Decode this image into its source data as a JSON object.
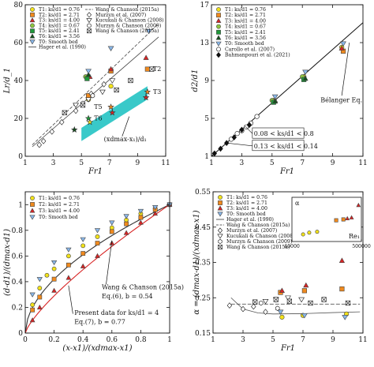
{
  "colors": {
    "t1": "#f2e21a",
    "t2": "#f08a1e",
    "t3": "#d82424",
    "t4": "#8ec63f",
    "t5": "#1f9a3a",
    "t6": "#154f1d",
    "t0": "#8ab8ea",
    "band": "#2ec6c6",
    "axis": "#111111",
    "ref": "#333333"
  },
  "chart_data": [
    {
      "id": "A",
      "type": "scatter",
      "ylabel": "L_r/d_1",
      "xlabel": "Fr_1",
      "xlim": [
        1,
        11
      ],
      "ylim": [
        0,
        80
      ],
      "xticks": [
        1,
        3,
        5,
        7,
        9,
        11
      ],
      "yticks": [
        0,
        20,
        40,
        60,
        80
      ],
      "grid": false,
      "legend_position": "top-left",
      "annotations": [
        "T2",
        "T3",
        "T5",
        "T6",
        "(x_dmax-x_1)/d_1"
      ],
      "band": {
        "x": [
          5,
          9.7
        ],
        "lower": [
          8,
          30
        ],
        "upper": [
          15,
          37
        ]
      },
      "lines": [
        {
          "name": "Hager et al. (1990)",
          "style": "solid",
          "x": [
            1.5,
            10.5
          ],
          "y": [
            5,
            63
          ]
        },
        {
          "name": "Wang & Chanson (2015a)",
          "style": "dashed",
          "x": [
            1.5,
            10.5
          ],
          "y": [
            6,
            70
          ]
        }
      ],
      "series": [
        {
          "name": "T1: k_s/d_1 = 0.76",
          "marker": "circle",
          "color": "t1",
          "x": [
            5.5,
            7.1
          ],
          "y": [
            30,
            37
          ]
        },
        {
          "name": "T2: k_s/d_1 = 2.71",
          "marker": "square",
          "color": "t2",
          "x": [
            5.5,
            7.1,
            9.7
          ],
          "y": [
            32,
            45,
            46
          ]
        },
        {
          "name": "T3: k_s/d_1 = 4.00",
          "marker": "triangle",
          "color": "t3",
          "x": [
            5.6,
            7.1,
            9.6
          ],
          "y": [
            42,
            46,
            52
          ]
        },
        {
          "name": "T4: k_s/d_1 = 0.67",
          "marker": "circle",
          "color": "t4",
          "x": [
            5.3
          ],
          "y": [
            42
          ]
        },
        {
          "name": "T5: k_s/d_1 = 2.41",
          "marker": "square",
          "color": "t5",
          "x": [
            5.4
          ],
          "y": [
            41
          ]
        },
        {
          "name": "T6: k_s/d_1 = 3.56",
          "marker": "triangle",
          "color": "t6",
          "x": [
            5.5
          ],
          "y": [
            43
          ]
        },
        {
          "name": "T0: Smooth bed",
          "marker": "triangle-down",
          "color": "t0",
          "x": [
            5.5,
            7.1,
            9.8
          ],
          "y": [
            45,
            57,
            66
          ]
        },
        {
          "name": "Present T2 star",
          "marker": "star",
          "color": "t2",
          "x": [
            7.1,
            9.7
          ],
          "y": [
            26,
            34
          ]
        },
        {
          "name": "Present T3 star",
          "marker": "star",
          "color": "t3",
          "x": [
            7.2,
            9.6
          ],
          "y": [
            23,
            31
          ]
        },
        {
          "name": "Present T5 star",
          "marker": "star",
          "color": "t5",
          "x": [
            5.5
          ],
          "y": [
            20
          ]
        },
        {
          "name": "Present T6 star",
          "marker": "star",
          "color": "t6",
          "x": [
            4.5
          ],
          "y": [
            14
          ]
        },
        {
          "name": "Present T1 star",
          "marker": "star",
          "color": "t1",
          "x": [
            5.6
          ],
          "y": [
            18
          ]
        },
        {
          "name": "Murzyn et al. (2007)",
          "marker": "diamond",
          "color": "open",
          "x": [
            2.0,
            2.3,
            2.9,
            3.6,
            4.6,
            5.7,
            6.6
          ],
          "y": [
            6,
            8,
            13,
            18,
            24,
            33,
            38
          ]
        },
        {
          "name": "Kucukali & Chanson (2008)",
          "marker": "triangle-down-open",
          "color": "open",
          "x": [
            4.6,
            5.5,
            6.5,
            7.2
          ],
          "y": [
            27,
            30,
            34,
            40
          ]
        },
        {
          "name": "Murzyn & Chanson (2009)",
          "marker": "hexagon",
          "color": "open",
          "x": [
            5.1,
            5.8
          ],
          "y": [
            28,
            32
          ]
        },
        {
          "name": "Wang & Chanson (2015a)",
          "marker": "xbox",
          "color": "open",
          "x": [
            3.8,
            5.1,
            7.5,
            8.5,
            10.0
          ],
          "y": [
            23,
            27,
            35,
            40,
            46
          ]
        }
      ]
    },
    {
      "id": "B",
      "type": "scatter",
      "ylabel": "d_2/d_1",
      "xlabel": "Fr_1",
      "xlim": [
        1,
        11
      ],
      "ylim": [
        1,
        17
      ],
      "xticks": [
        1,
        3,
        5,
        7,
        9,
        11
      ],
      "yticks": [
        1,
        5,
        9,
        13,
        17
      ],
      "grid": false,
      "legend_position": "top-left",
      "annotations": [
        "Bélanger Eq.",
        "0.08 < k_s/d_1 < 0.8",
        "0.13 < k_s/d_1 < 0.14"
      ],
      "lines": [
        {
          "name": "Bélanger Eq.",
          "style": "solid",
          "x": [
            1,
            11
          ],
          "y": [
            1,
            15.1
          ]
        }
      ],
      "series": [
        {
          "name": "T1: k_s/d_1 = 0.76",
          "marker": "circle",
          "color": "t1",
          "x": [
            5.1,
            7.1,
            9.6
          ],
          "y": [
            6.9,
            9.4,
            12.5
          ]
        },
        {
          "name": "T2: k_s/d_1 = 2.71",
          "marker": "square",
          "color": "t2",
          "x": [
            5.1,
            7.1,
            9.7
          ],
          "y": [
            6.8,
            9.2,
            12.1
          ]
        },
        {
          "name": "T3: k_s/d_1 = 4.00",
          "marker": "triangle",
          "color": "t3",
          "x": [
            5.2,
            7.1,
            9.6
          ],
          "y": [
            6.9,
            9.3,
            12.4
          ]
        },
        {
          "name": "T4: k_s/d_1 = 0.67",
          "marker": "circle",
          "color": "t4",
          "x": [
            5.0,
            7.0
          ],
          "y": [
            6.9,
            9.4
          ]
        },
        {
          "name": "T5: k_s/d_1 = 2.41",
          "marker": "square",
          "color": "t5",
          "x": [
            5.1,
            7.1
          ],
          "y": [
            6.7,
            9.1
          ]
        },
        {
          "name": "T6: k_s/d_1 = 3.56",
          "marker": "triangle",
          "color": "t6",
          "x": [
            5.2,
            7.2
          ],
          "y": [
            6.8,
            9.2
          ]
        },
        {
          "name": "T0: Smooth bed",
          "marker": "triangle-down",
          "color": "t0",
          "x": [
            5.2,
            7.2,
            9.7
          ],
          "y": [
            7.3,
            9.9,
            12.9
          ]
        },
        {
          "name": "Carollo et al. (2007)",
          "marker": "circle-open",
          "color": "open",
          "x": [
            2.3,
            2.7,
            3.0,
            3.3,
            3.6,
            4.0
          ],
          "y": [
            2.8,
            3.4,
            3.7,
            4.1,
            4.5,
            5.2
          ]
        },
        {
          "name": "Bahmanpouri et al. (2021)",
          "marker": "diamond-filled",
          "color": "black",
          "x": [
            1.2,
            1.6,
            2.0,
            2.5,
            3.0,
            3.5
          ],
          "y": [
            1.3,
            1.8,
            2.4,
            3.0,
            3.8,
            4.3
          ]
        }
      ]
    },
    {
      "id": "C",
      "type": "scatter",
      "ylabel": "(d-d_1)/(d_max-d_1)",
      "xlabel": "(x-x_1)/(x_dmax-x_1)",
      "xlim": [
        0,
        1
      ],
      "ylim": [
        0,
        1.1
      ],
      "xticks": [
        0,
        0.2,
        0.4,
        0.6,
        0.8,
        1
      ],
      "yticks": [
        0,
        0.2,
        0.4,
        0.6,
        0.8,
        1
      ],
      "grid": false,
      "legend_position": "top-left",
      "annotations": [
        "Wang & Chanson (2015a)",
        "Eq.(6), b = 0.54",
        "Present data for k_s/d_1 = 4",
        "Eq.(7), b = 0.77"
      ],
      "lines": [
        {
          "name": "Eq.(6), b = 0.54",
          "style": "solid",
          "color": "ref",
          "exponent": 0.54
        },
        {
          "name": "Eq.(7), b = 0.77",
          "style": "solid",
          "color": "t3",
          "exponent": 0.77
        }
      ],
      "series": [
        {
          "name": "T1: k_s/d_1 = 0.76",
          "marker": "circle",
          "color": "t1",
          "x": [
            0.05,
            0.1,
            0.15,
            0.2,
            0.3,
            0.4,
            0.5,
            0.6,
            0.7,
            0.8,
            0.9,
            1.0
          ],
          "y": [
            0.22,
            0.35,
            0.45,
            0.5,
            0.6,
            0.68,
            0.75,
            0.82,
            0.88,
            0.93,
            0.97,
            1.0
          ]
        },
        {
          "name": "T2: k_s/d_1 = 2.71",
          "marker": "square",
          "color": "t2",
          "x": [
            0.05,
            0.1,
            0.2,
            0.3,
            0.4,
            0.5,
            0.6,
            0.7,
            0.8,
            0.9,
            1.0
          ],
          "y": [
            0.18,
            0.28,
            0.42,
            0.53,
            0.62,
            0.7,
            0.79,
            0.85,
            0.9,
            0.96,
            1.0
          ]
        },
        {
          "name": "T3: k_s/d_1 = 4.00",
          "marker": "triangle",
          "color": "t3",
          "x": [
            0.05,
            0.1,
            0.2,
            0.3,
            0.4,
            0.5,
            0.6,
            0.7,
            0.8,
            0.9,
            1.0
          ],
          "y": [
            0.1,
            0.2,
            0.33,
            0.43,
            0.52,
            0.6,
            0.7,
            0.78,
            0.86,
            0.93,
            1.0
          ]
        },
        {
          "name": "T0: Smooth bed",
          "marker": "triangle-down",
          "color": "t0",
          "x": [
            0.05,
            0.1,
            0.2,
            0.3,
            0.4,
            0.5,
            0.6,
            0.7,
            0.8,
            0.9,
            1.0
          ],
          "y": [
            0.3,
            0.42,
            0.55,
            0.65,
            0.73,
            0.8,
            0.86,
            0.91,
            0.95,
            0.98,
            1.0
          ]
        }
      ]
    },
    {
      "id": "D",
      "type": "scatter",
      "ylabel": "α = (d_max-d_1)/(x_dmax-x_1)",
      "xlabel": "Fr_1",
      "xlim": [
        1,
        11
      ],
      "ylim": [
        0.15,
        0.55
      ],
      "xticks": [
        1,
        3,
        5,
        7,
        9,
        11
      ],
      "yticks": [
        0.15,
        0.25,
        0.35,
        0.45,
        0.55
      ],
      "grid": false,
      "legend_position": "top-left",
      "lines": [
        {
          "name": "Hager et al. (1990)",
          "style": "solid",
          "x": [
            2.2,
            3,
            4,
            5,
            7,
            9,
            10.8
          ],
          "y": [
            0.25,
            0.218,
            0.207,
            0.204,
            0.205,
            0.208,
            0.21
          ]
        },
        {
          "name": "Wang & Chanson (2015a)",
          "style": "dashed",
          "x": [
            2.2,
            10.8
          ],
          "y": [
            0.232,
            0.232
          ]
        }
      ],
      "series": [
        {
          "name": "T1: k_s/d_1 = 0.76",
          "marker": "circle",
          "color": "t1",
          "x": [
            5.6,
            7.0,
            9.9
          ],
          "y": [
            0.195,
            0.2,
            0.204
          ]
        },
        {
          "name": "T2: k_s/d_1 = 2.71",
          "marker": "square",
          "color": "t2",
          "x": [
            5.5,
            7.1,
            9.6
          ],
          "y": [
            0.265,
            0.27,
            0.275
          ]
        },
        {
          "name": "T3: k_s/d_1 = 4.00",
          "marker": "triangle",
          "color": "t3",
          "x": [
            5.6,
            7.2,
            9.6
          ],
          "y": [
            0.27,
            0.285,
            0.355
          ]
        },
        {
          "name": "T0: Smooth bed",
          "marker": "triangle-down",
          "color": "t0",
          "x": [
            5.5,
            7.1,
            9.8
          ],
          "y": [
            0.21,
            0.2,
            0.195
          ]
        },
        {
          "name": "Murzyn et al. (2007)",
          "marker": "diamond",
          "color": "open",
          "x": [
            2.1,
            3.0,
            3.7,
            4.5
          ],
          "y": [
            0.228,
            0.218,
            0.225,
            0.21
          ]
        },
        {
          "name": "Kucukali & Chanson (2008)",
          "marker": "triangle-down-open",
          "color": "open",
          "x": [
            4.5,
            5.2,
            6.0,
            6.9
          ],
          "y": [
            0.24,
            0.245,
            0.25,
            0.245
          ]
        },
        {
          "name": "Murzyn & Chanson (2009)",
          "marker": "hexagon",
          "color": "open",
          "x": [
            4.2,
            5.3
          ],
          "y": [
            0.235,
            0.22
          ]
        },
        {
          "name": "Wang & Chanson (2015a)",
          "marker": "xbox",
          "color": "open",
          "x": [
            3.8,
            5.2,
            6.1,
            7.5,
            8.4,
            10.0
          ],
          "y": [
            0.238,
            0.245,
            0.24,
            0.235,
            0.245,
            0.235
          ]
        }
      ],
      "inset": {
        "ylabel": "α",
        "xlabel": "Re₁",
        "xticks": [
          40000,
          500000
        ],
        "xlim": [
          40000,
          500000
        ],
        "ylim": [
          0.15,
          0.4
        ],
        "points": [
          {
            "color": "t1",
            "marker": "circle",
            "x": 60000,
            "y": 0.19
          },
          {
            "color": "t1",
            "marker": "circle",
            "x": 75000,
            "y": 0.2
          },
          {
            "color": "t1",
            "marker": "circle",
            "x": 100000,
            "y": 0.205
          },
          {
            "color": "t2",
            "marker": "square",
            "x": 200000,
            "y": 0.27
          },
          {
            "color": "t2",
            "marker": "square",
            "x": 260000,
            "y": 0.275
          },
          {
            "color": "t3",
            "marker": "triangle",
            "x": 300000,
            "y": 0.28
          },
          {
            "color": "t3",
            "marker": "triangle",
            "x": 350000,
            "y": 0.285
          },
          {
            "color": "t3",
            "marker": "triangle",
            "x": 450000,
            "y": 0.355
          }
        ]
      }
    }
  ]
}
